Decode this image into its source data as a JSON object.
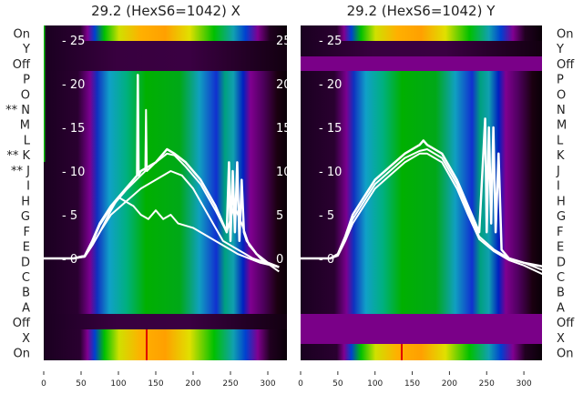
{
  "chart_data": [
    {
      "type": "heatmap",
      "title": "29.2 (HexS6=1042) X",
      "xlim": [
        0,
        330
      ],
      "ylim": [
        -3,
        26.5
      ],
      "x_ticks": [
        "0",
        "50",
        "100",
        "150",
        "200",
        "250",
        "300"
      ],
      "x_tick_values": [
        0,
        50,
        100,
        150,
        200,
        250,
        300
      ],
      "y_ticks": [
        "25",
        "20",
        "15",
        "10",
        "5",
        "0"
      ],
      "y_tick_values": [
        25,
        20,
        15,
        10,
        5,
        0
      ],
      "row_labels": [
        "On",
        "Y",
        "Off",
        "P",
        "O",
        "** N",
        "M",
        "L",
        "** K",
        "** J",
        "I",
        "H",
        "G",
        "F",
        "E",
        "D",
        "C",
        "B",
        "A",
        "Off",
        "X",
        "On"
      ],
      "series": [
        {
          "name": "trace-1",
          "x": [
            0,
            40,
            55,
            65,
            75,
            90,
            110,
            125,
            126,
            127,
            130,
            140,
            150,
            165,
            175,
            190,
            210,
            230,
            245,
            248,
            250,
            253,
            256,
            259,
            262,
            265,
            268,
            272,
            285,
            300,
            315
          ],
          "y": [
            0,
            0,
            0.3,
            2,
            4,
            6,
            8,
            9.5,
            21,
            9.5,
            10,
            10.5,
            11,
            12.5,
            12,
            11,
            9,
            6,
            3,
            11,
            2,
            10,
            3,
            11,
            2,
            9,
            3,
            2,
            0.5,
            -0.5,
            -1
          ]
        },
        {
          "name": "trace-2",
          "x": [
            0,
            40,
            55,
            65,
            75,
            90,
            110,
            130,
            136,
            137,
            138,
            150,
            165,
            175,
            190,
            210,
            230,
            245,
            255,
            265,
            275,
            290,
            315
          ],
          "y": [
            0,
            0,
            0.3,
            1.8,
            3.8,
            5.8,
            7.8,
            9.5,
            10,
            17,
            10,
            11,
            12,
            11.8,
            10.5,
            8.5,
            5.5,
            3,
            6,
            4,
            1.5,
            0,
            -1.5
          ]
        },
        {
          "name": "trace-3",
          "x": [
            0,
            40,
            55,
            65,
            75,
            90,
            110,
            130,
            150,
            170,
            185,
            200,
            220,
            240,
            260,
            280,
            315
          ],
          "y": [
            0,
            0,
            0.2,
            1.5,
            3,
            5,
            6.5,
            8,
            9,
            10,
            9.5,
            8,
            5,
            2,
            1,
            0,
            -1
          ]
        },
        {
          "name": "trace-4",
          "x": [
            0,
            40,
            55,
            65,
            75,
            90,
            100,
            110,
            120,
            130,
            140,
            150,
            160,
            170,
            180,
            200,
            220,
            240,
            260,
            290,
            315
          ],
          "y": [
            0,
            0,
            0.2,
            1.5,
            3,
            5.5,
            7,
            6.5,
            6,
            5,
            4.5,
            5.5,
            4.5,
            5,
            4,
            3.5,
            2.5,
            1.5,
            0.5,
            -0.5,
            -1
          ]
        }
      ]
    },
    {
      "type": "heatmap",
      "title": "29.2 (HexS6=1042) Y",
      "xlim": [
        0,
        330
      ],
      "ylim": [
        -3,
        26.5
      ],
      "x_ticks": [
        "0",
        "50",
        "100",
        "150",
        "200",
        "250",
        "300"
      ],
      "x_tick_values": [
        0,
        50,
        100,
        150,
        200,
        250,
        300
      ],
      "y_ticks": [
        "25",
        "20",
        "15",
        "10",
        "5",
        "0"
      ],
      "y_tick_values": [
        25,
        20,
        15,
        10,
        5,
        0
      ],
      "row_labels": [
        "On",
        "Y",
        "Off",
        "P",
        "O",
        "N",
        "M",
        "L",
        "K",
        "J",
        "I",
        "H",
        "G",
        "F",
        "E",
        "D",
        "C",
        "B",
        "A",
        "Off",
        "X",
        "On"
      ],
      "series": [
        {
          "name": "trace-1",
          "x": [
            0,
            40,
            50,
            60,
            70,
            85,
            100,
            120,
            140,
            160,
            165,
            170,
            190,
            210,
            225,
            240,
            248,
            250,
            253,
            256,
            259,
            262,
            266,
            270,
            280,
            300,
            330
          ],
          "y": [
            0,
            0,
            0.5,
            2.5,
            5,
            7,
            9,
            10.5,
            12,
            13,
            13.5,
            13,
            12,
            9,
            6,
            3,
            16,
            3,
            15,
            4,
            15,
            3,
            12,
            1,
            0,
            -0.5,
            -1
          ]
        },
        {
          "name": "trace-2",
          "x": [
            0,
            40,
            50,
            60,
            70,
            85,
            100,
            120,
            140,
            160,
            170,
            190,
            210,
            225,
            240,
            260,
            280,
            300,
            330
          ],
          "y": [
            0,
            0,
            0.4,
            2.3,
            4.5,
            6.5,
            8.5,
            10,
            11.5,
            12.3,
            12.5,
            11.5,
            8.5,
            5.5,
            2.5,
            1,
            0,
            -0.5,
            -1.5
          ]
        },
        {
          "name": "trace-3",
          "x": [
            0,
            40,
            50,
            60,
            70,
            85,
            100,
            120,
            140,
            160,
            170,
            190,
            210,
            225,
            240,
            260,
            280,
            300,
            330
          ],
          "y": [
            0,
            0,
            0.3,
            2,
            4,
            6,
            8,
            9.5,
            11,
            12,
            12,
            11,
            8,
            5,
            2.2,
            0.8,
            -0.2,
            -0.8,
            -2
          ]
        }
      ]
    }
  ]
}
